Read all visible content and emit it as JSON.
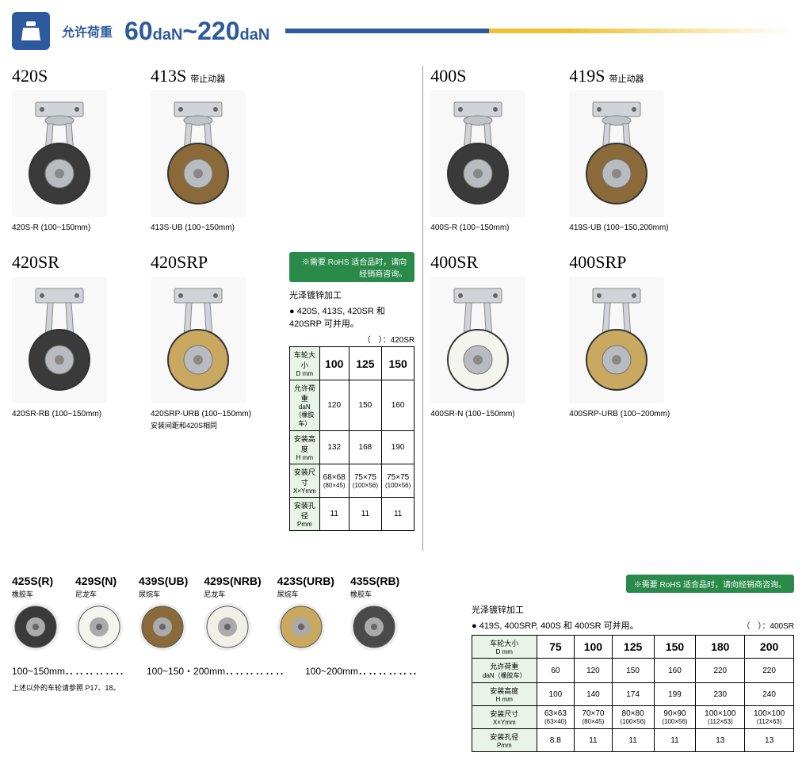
{
  "header": {
    "label": "允许荷重",
    "range_min": "60",
    "range_max": "220",
    "unit": "daN",
    "tilde": "~"
  },
  "left": {
    "row1": [
      {
        "title": "420S",
        "sub": "",
        "caption": "420S-R (100~150mm)",
        "caption2": "",
        "wheel_color": "#3a3a3a"
      },
      {
        "title": "413S",
        "sub": "带止动器",
        "caption": "413S-UB (100~150mm)",
        "caption2": "",
        "wheel_color": "#8b6a3a"
      }
    ],
    "row2": [
      {
        "title": "420SR",
        "sub": "",
        "caption": "420SR-RB (100~150mm)",
        "caption2": "",
        "wheel_color": "#3a3a3a"
      },
      {
        "title": "420SRP",
        "sub": "",
        "caption": "420SRP-URB (100~150mm)",
        "caption2": "安装间距和420S相同",
        "wheel_color": "#c9a860"
      }
    ],
    "spec": {
      "rohs": "※需要 RoHS 适合品时，请向经销商咨询。",
      "title": "光泽镀锌加工",
      "bullet": "● 420S, 413S, 420SR 和 420SRP 可并用。",
      "note": "（　）：420SR",
      "headers": {
        "h1": "车轮大小",
        "h1s": "D mm",
        "h2": "允许荷重",
        "h2s": "daN（橡胶车）",
        "h3": "安装高度",
        "h3s": "H mm",
        "h4": "安装尺寸",
        "h4s": "X×Ymm",
        "h5": "安装孔径",
        "h5s": "Pmm"
      },
      "sizes": [
        "100",
        "125",
        "150"
      ],
      "load": [
        "120",
        "150",
        "160"
      ],
      "height": [
        "132",
        "168",
        "190"
      ],
      "mount": [
        "68×68",
        "75×75",
        "75×75"
      ],
      "mount_sub": [
        "(80×45)",
        "(100×56)",
        "(100×56)"
      ],
      "hole": [
        "11",
        "11",
        "11"
      ]
    }
  },
  "right": {
    "row1": [
      {
        "title": "400S",
        "sub": "",
        "caption": "400S-R (100~150mm)",
        "wheel_color": "#3a3a3a"
      },
      {
        "title": "419S",
        "sub": "带止动器",
        "caption": "419S-UB (100~150,200mm)",
        "wheel_color": "#8b6a3a"
      }
    ],
    "row2": [
      {
        "title": "400SR",
        "sub": "",
        "caption": "400SR-N (100~150mm)",
        "wheel_color": "#f5f5f0"
      },
      {
        "title": "400SRP",
        "sub": "",
        "caption": "400SRP-URB (100~200mm)",
        "wheel_color": "#c9a860"
      }
    ]
  },
  "wheels": {
    "items": [
      {
        "title": "425S(R)",
        "type": "橡胶车",
        "color": "#3a3a3a"
      },
      {
        "title": "429S(N)",
        "type": "尼龙车",
        "color": "#f5f5f0"
      },
      {
        "title": "439S(UB)",
        "type": "尿烷车",
        "color": "#8b6a3a"
      },
      {
        "title": "429S(NRB)",
        "type": "尼龙车",
        "color": "#f0f0e8"
      },
      {
        "title": "423S(URB)",
        "type": "尿烷车",
        "color": "#c9a860"
      },
      {
        "title": "435S(RB)",
        "type": "橡胶车",
        "color": "#4a4a4a"
      }
    ],
    "range1": "100~150mm",
    "range2": "100~150・200mm",
    "range3": "100~200mm",
    "dots": "‥‥‥‥‥‥",
    "note": "上述以外的车轮请参照 P17、18。"
  },
  "right_spec": {
    "rohs": "※需要 RoHS 适合品时，请向经销商咨询。",
    "title": "光泽镀锌加工",
    "bullet": "● 419S, 400SRP, 400S 和 400SR 可并用。",
    "note": "（　）：400SR",
    "headers": {
      "h1": "车轮大小",
      "h1s": "D mm",
      "h2": "允许荷重",
      "h2s": "daN（橡胶车）",
      "h3": "安装高度",
      "h3s": "H mm",
      "h4": "安装尺寸",
      "h4s": "X×Ymm",
      "h5": "安装孔径",
      "h5s": "Pmm"
    },
    "sizes": [
      "75",
      "100",
      "125",
      "150",
      "180",
      "200"
    ],
    "load": [
      "60",
      "120",
      "150",
      "160",
      "220",
      "220"
    ],
    "height": [
      "100",
      "140",
      "174",
      "199",
      "230",
      "240"
    ],
    "mount": [
      "63×63",
      "70×70",
      "80×80",
      "90×90",
      "100×100",
      "100×100"
    ],
    "mount_sub": [
      "(63×40)",
      "(80×45)",
      "(100×56)",
      "(100×56)",
      "(112×63)",
      "(112×63)"
    ],
    "hole": [
      "8.8",
      "11",
      "11",
      "11",
      "13",
      "13"
    ]
  }
}
